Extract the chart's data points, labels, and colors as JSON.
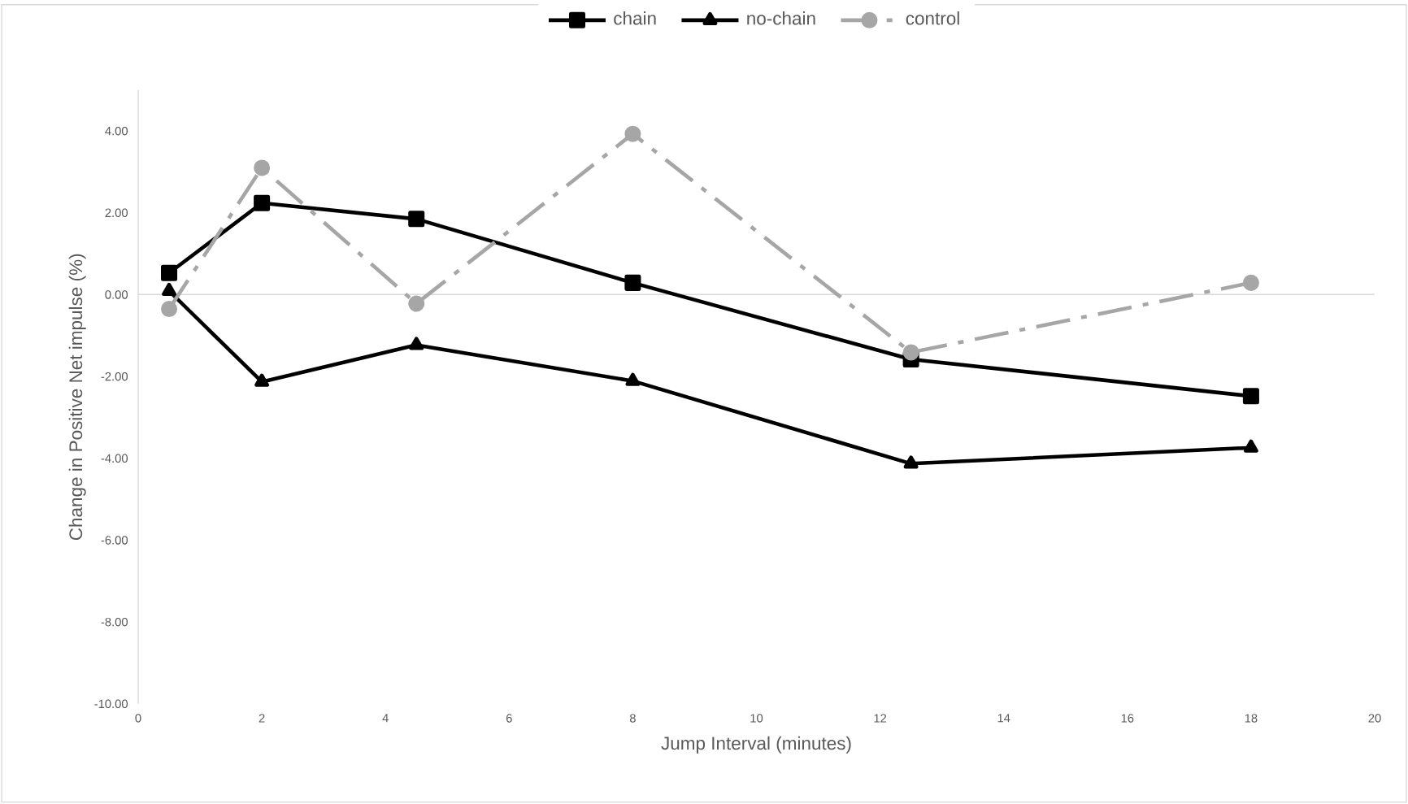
{
  "chart_data": {
    "type": "line",
    "xlabel": "Jump Interval (minutes)",
    "ylabel": "Change in Positive Net impulse (%)",
    "x": [
      0.5,
      2,
      4.5,
      8,
      12.5,
      18
    ],
    "series": [
      {
        "name": "chain",
        "color": "#000000",
        "marker": "square",
        "line_style": "solid",
        "values": [
          0.53,
          2.24,
          1.85,
          0.29,
          -1.58,
          -2.48
        ]
      },
      {
        "name": "no-chain",
        "color": "#000000",
        "marker": "triangle",
        "line_style": "solid",
        "values": [
          0.09,
          -2.13,
          -1.23,
          -2.11,
          -4.13,
          -3.74
        ]
      },
      {
        "name": "control",
        "color": "#a6a6a6",
        "marker": "circle",
        "line_style": "dashed",
        "values": [
          -0.35,
          3.1,
          -0.22,
          3.93,
          -1.41,
          0.29
        ]
      }
    ],
    "xlim": [
      0,
      20
    ],
    "ylim": [
      -10,
      5
    ],
    "xticks": [
      0,
      2,
      4,
      6,
      8,
      10,
      12,
      14,
      16,
      18,
      20
    ],
    "yticks": [
      {
        "value": -10,
        "label": "-10.00"
      },
      {
        "value": -8,
        "label": "-8.00"
      },
      {
        "value": -6,
        "label": "-6.00"
      },
      {
        "value": -4,
        "label": "-4.00"
      },
      {
        "value": -2,
        "label": "-2.00"
      },
      {
        "value": 0,
        "label": "0.00"
      },
      {
        "value": 2,
        "label": "2.00"
      },
      {
        "value": 4,
        "label": "4.00"
      }
    ],
    "ref_lines": [
      {
        "axis": "y",
        "value": 0,
        "color": "#d9d9d9"
      }
    ],
    "grid": false,
    "legend": "top"
  }
}
